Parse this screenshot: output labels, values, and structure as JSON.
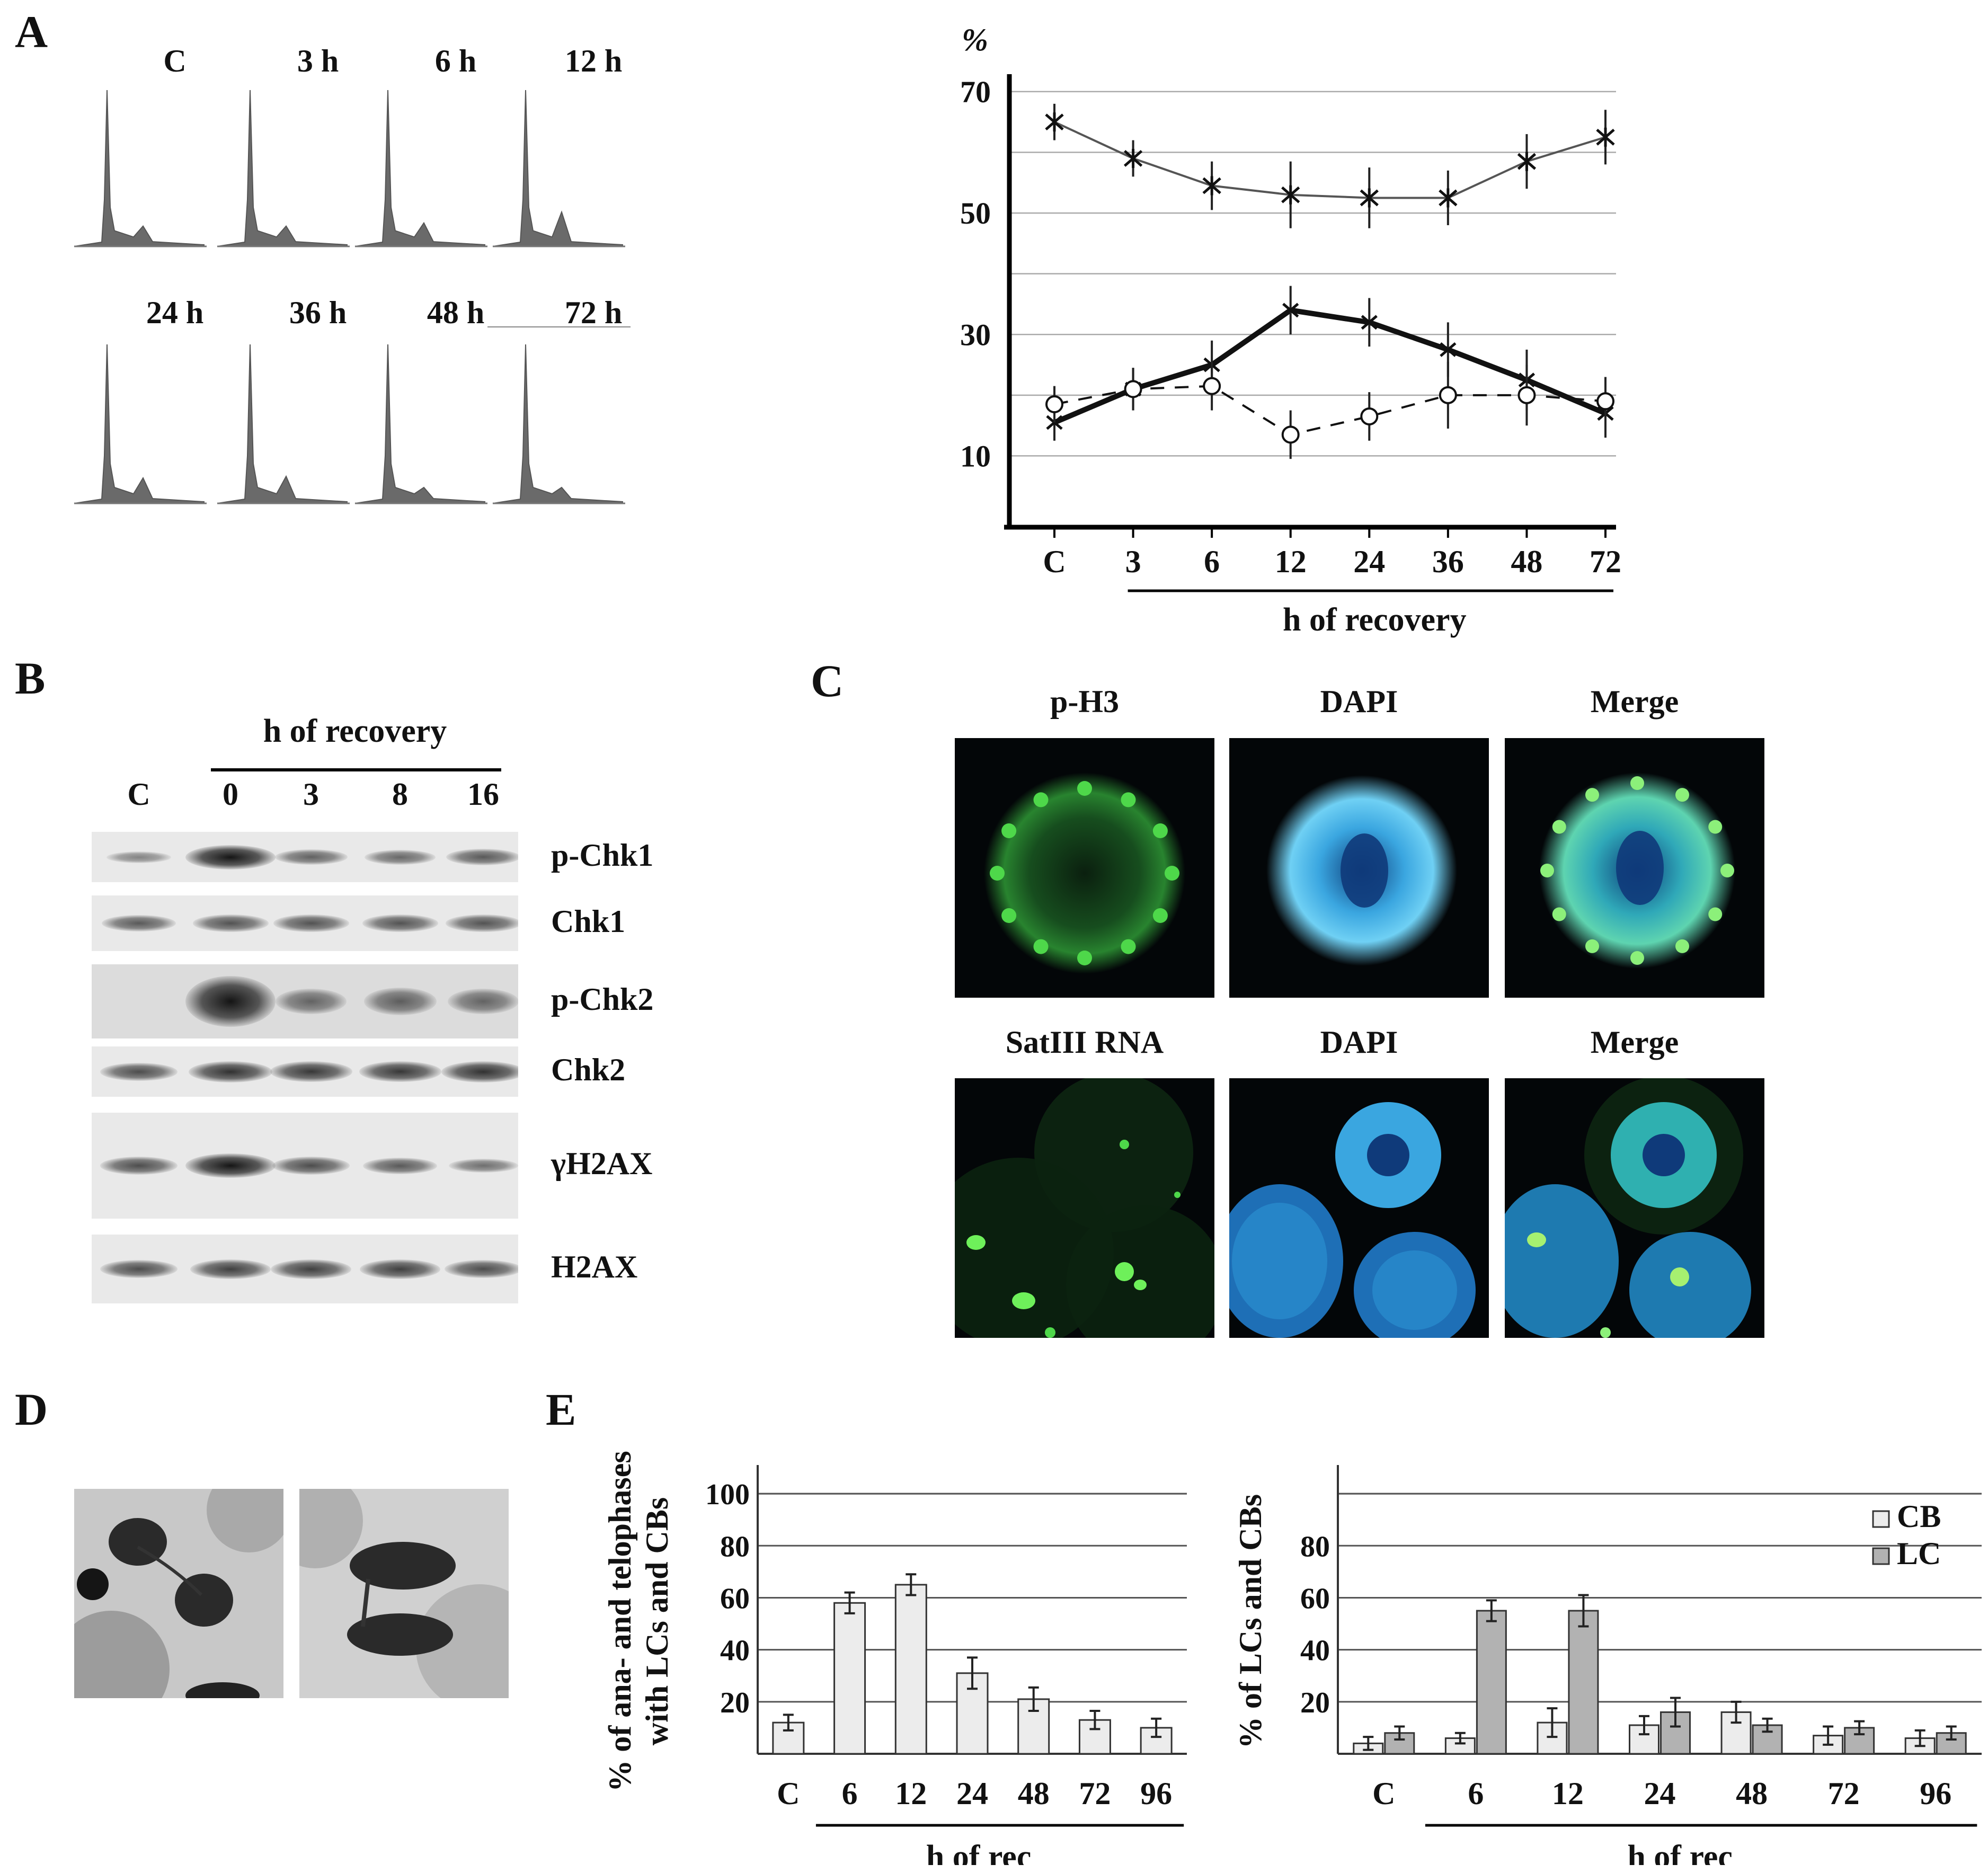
{
  "panels": {
    "A": {
      "letter": "A",
      "histograms": [
        "C",
        "3 h",
        "6 h",
        "12 h",
        "24 h",
        "36 h",
        "48 h",
        "72 h"
      ],
      "histogram_peaks": [
        {
          "g1": 1.0,
          "g2": 0.13
        },
        {
          "g1": 1.0,
          "g2": 0.13
        },
        {
          "g1": 1.0,
          "g2": 0.15
        },
        {
          "g1": 1.0,
          "g2": 0.22
        },
        {
          "g1": 1.0,
          "g2": 0.16
        },
        {
          "g1": 1.0,
          "g2": 0.17
        },
        {
          "g1": 1.0,
          "g2": 0.1
        },
        {
          "g1": 1.0,
          "g2": 0.1
        }
      ]
    },
    "B": {
      "letter": "B",
      "header": "h of recovery",
      "lanes": [
        "C",
        "0",
        "3",
        "8",
        "16"
      ],
      "rows": [
        {
          "label": "p-Chk1",
          "intensity": [
            0.2,
            1.0,
            0.45,
            0.4,
            0.5
          ]
        },
        {
          "label": "Chk1",
          "intensity": [
            0.5,
            0.55,
            0.55,
            0.55,
            0.55
          ]
        },
        {
          "label": "p-Chk2",
          "intensity": [
            0.0,
            1.0,
            0.4,
            0.45,
            0.4
          ]
        },
        {
          "label": "Chk2",
          "intensity": [
            0.6,
            0.8,
            0.75,
            0.75,
            0.8
          ]
        },
        {
          "label": "γH2AX",
          "intensity": [
            0.6,
            1.0,
            0.6,
            0.5,
            0.35
          ]
        },
        {
          "label": "H2AX",
          "intensity": [
            0.6,
            0.7,
            0.7,
            0.7,
            0.6
          ]
        }
      ]
    },
    "C": {
      "letter": "C",
      "row1": [
        "p-H3",
        "DAPI",
        "Merge"
      ],
      "row2": [
        "SatIII RNA",
        "DAPI",
        "Merge"
      ],
      "colors": {
        "green": "#38c83a",
        "blue": "#3aa6e0"
      }
    },
    "D": {
      "letter": "D"
    },
    "E": {
      "letter": "E"
    }
  },
  "chart_data": [
    {
      "type": "line",
      "x": [
        "C",
        "3",
        "6",
        "12",
        "24",
        "36",
        "48",
        "72"
      ],
      "xlabel": "h of recovery",
      "ylabel": "%",
      "yticks": [
        "70",
        "50",
        "30",
        "10"
      ],
      "ylim": [
        0,
        72
      ],
      "grid": true,
      "series": [
        {
          "style": "thin-line-star",
          "values": [
            65,
            59,
            54.5,
            53,
            52.5,
            52.5,
            58.5,
            62.5
          ],
          "err": [
            3,
            3,
            4,
            5.5,
            5,
            4.5,
            4.5,
            4.5
          ]
        },
        {
          "style": "thick-line-x",
          "values": [
            15.5,
            21,
            25,
            34,
            32,
            27.5,
            22.5,
            17
          ],
          "err": [
            3,
            3.5,
            4,
            4,
            4,
            4.5,
            5,
            4
          ]
        },
        {
          "style": "dashed-circle",
          "values": [
            18.5,
            21,
            21.5,
            13.5,
            16.5,
            20,
            20,
            19
          ],
          "err": [
            3,
            3.5,
            4,
            4,
            4,
            5.5,
            5,
            4
          ]
        }
      ]
    },
    {
      "type": "bar",
      "categories": [
        "C",
        "6",
        "12",
        "24",
        "48",
        "72",
        "96"
      ],
      "xlabel": "h of rec",
      "ylabel": "% of ana- and telophases with LCs and CBs",
      "yticks": [
        "100",
        "80",
        "60",
        "40",
        "20"
      ],
      "ylim": [
        0,
        110
      ],
      "grid": true,
      "series": [
        {
          "values": [
            12,
            58,
            65,
            31,
            21,
            13,
            10
          ],
          "err": [
            3,
            4,
            4,
            6,
            4.5,
            3.5,
            3.5
          ],
          "color": "#ececec"
        }
      ]
    },
    {
      "type": "bar",
      "categories": [
        "C",
        "6",
        "12",
        "24",
        "48",
        "72",
        "96"
      ],
      "xlabel": "h of rec",
      "ylabel": "% of LCs and CBs",
      "yticks": [
        "80",
        "60",
        "40",
        "20"
      ],
      "ylim": [
        0,
        110
      ],
      "grid": true,
      "legend": "top-right",
      "series": [
        {
          "name": "CB",
          "values": [
            4,
            6,
            12,
            11,
            16,
            7,
            6
          ],
          "err": [
            2.5,
            2,
            5.5,
            3.5,
            4,
            3.5,
            3
          ],
          "color": "#ececec"
        },
        {
          "name": "LC",
          "values": [
            8,
            55,
            55,
            16,
            11,
            10,
            8
          ],
          "err": [
            2.5,
            4,
            6,
            5.5,
            2.5,
            2.5,
            2.5
          ],
          "color": "#b2b2b2"
        }
      ]
    }
  ]
}
